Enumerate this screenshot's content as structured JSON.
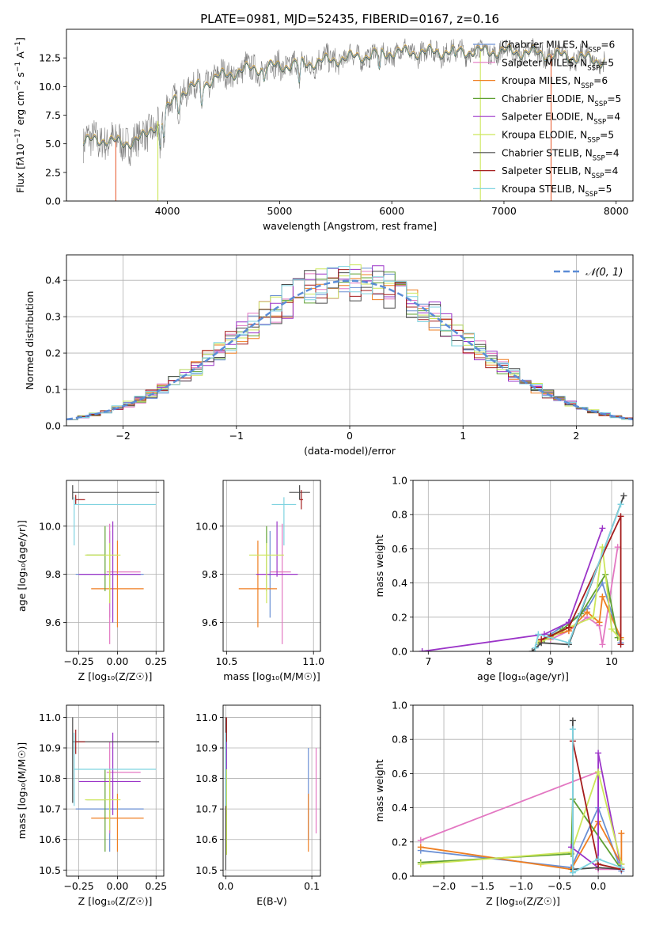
{
  "figure": {
    "title": "PLATE=0981, MJD=52435, FIBERID=0167, z=0.16"
  },
  "colors": {
    "Chabrier MILES": "#6a8fd4",
    "Salpeter MILES": "#e377c2",
    "Kroupa MILES": "#ef7f22",
    "Chabrier ELODIE": "#5fa032",
    "Salpeter ELODIE": "#9b34c8",
    "Kroupa ELODIE": "#cce65a",
    "Chabrier STELIB": "#4a4a4a",
    "Salpeter STELIB": "#a41d1d",
    "Kroupa STELIB": "#7fd3e0",
    "gaussian": "#5b8cd6",
    "data_gray": "#808080",
    "grid": "#b0b0b0"
  },
  "legend_entries": [
    {
      "name": "Chabrier MILES",
      "nssp": "6"
    },
    {
      "name": "Salpeter MILES",
      "nssp": "5"
    },
    {
      "name": "Kroupa MILES",
      "nssp": "6"
    },
    {
      "name": "Chabrier ELODIE",
      "nssp": "5"
    },
    {
      "name": "Salpeter ELODIE",
      "nssp": "4"
    },
    {
      "name": "Kroupa ELODIE",
      "nssp": "5"
    },
    {
      "name": "Chabrier STELIB",
      "nssp": "4"
    },
    {
      "name": "Salpeter STELIB",
      "nssp": "4"
    },
    {
      "name": "Kroupa STELIB",
      "nssp": "5"
    }
  ],
  "chart_data": [
    {
      "id": "spectrum",
      "type": "line",
      "title": "PLATE=0981, MJD=52435, FIBERID=0167, z=0.16",
      "xlabel": "wavelength [Angstrom, rest frame]",
      "ylabel_html": "Flux [f<tspan font-style='italic'>λ</tspan>10<tspan baseline-shift='super' font-size='9'>−17</tspan> erg cm<tspan baseline-shift='super' font-size='9'>−2</tspan> s<tspan baseline-shift='super' font-size='9'>−1</tspan> A<tspan baseline-shift='super' font-size='9'>−1</tspan>]",
      "xlim": [
        3100,
        8150
      ],
      "ylim": [
        0,
        15
      ],
      "xticks": [
        4000,
        5000,
        6000,
        7000,
        8000
      ],
      "yticks": [
        0.0,
        2.5,
        5.0,
        7.5,
        10.0,
        12.5
      ],
      "continuum": {
        "x": [
          3250,
          3450,
          3600,
          3800,
          4000,
          4100,
          4300,
          4500,
          4700,
          5000,
          5300,
          5600,
          6000,
          6300,
          6600,
          6900,
          7200,
          7500,
          7700,
          7900
        ],
        "y": [
          5.2,
          5.4,
          5.0,
          5.6,
          8.0,
          9.4,
          10.2,
          11.0,
          11.5,
          11.8,
          12.1,
          12.5,
          13.0,
          13.0,
          13.1,
          13.1,
          13.0,
          12.7,
          12.5,
          12.2
        ]
      },
      "legend_position": "top-right",
      "grid": false
    },
    {
      "id": "residuals",
      "type": "step-histogram",
      "xlabel": "(data-model)/error",
      "ylabel": "Normed distribution",
      "xlim": [
        -2.5,
        2.5
      ],
      "ylim": [
        0,
        0.47
      ],
      "xticks": [
        -2,
        -1,
        0,
        1,
        2
      ],
      "yticks": [
        0.0,
        0.1,
        0.2,
        0.3,
        0.4
      ],
      "gaussian_label": "𝒩(0, 1)",
      "legend_position": "top-right",
      "grid": true
    },
    {
      "id": "age-vs-z",
      "type": "errorbar",
      "xlabel": "Z [log₁₀(Z/Z☉)]",
      "ylabel": "age  [log₁₀(age/yr)]",
      "xlim": [
        -0.33,
        0.3
      ],
      "ylim": [
        9.48,
        10.19
      ],
      "xticks": [
        -0.25,
        0.0,
        0.25
      ],
      "yticks": [
        9.6,
        9.8,
        10.0
      ],
      "grid": true,
      "points": [
        {
          "model": "Chabrier MILES",
          "x": -0.05,
          "xerr": [
            0.22,
            0.22
          ],
          "y": 9.8,
          "yerr": [
            0.18,
            0.18
          ]
        },
        {
          "model": "Salpeter MILES",
          "x": -0.05,
          "xerr": [
            0.02,
            0.2
          ],
          "y": 9.81,
          "yerr": [
            0.3,
            0.2
          ]
        },
        {
          "model": "Kroupa MILES",
          "x": 0.0,
          "xerr": [
            0.17,
            0.17
          ],
          "y": 9.74,
          "yerr": [
            0.16,
            0.2
          ]
        },
        {
          "model": "Chabrier ELODIE",
          "x": -0.08,
          "xerr": [
            0.12,
            0.0
          ],
          "y": 9.88,
          "yerr": [
            0.15,
            0.12
          ]
        },
        {
          "model": "Salpeter ELODIE",
          "x": -0.03,
          "xerr": [
            0.22,
            0.18
          ],
          "y": 9.8,
          "yerr": [
            0.2,
            0.22
          ]
        },
        {
          "model": "Kroupa ELODIE",
          "x": -0.05,
          "xerr": [
            0.16,
            0.07
          ],
          "y": 9.88,
          "yerr": [
            0.2,
            0.05
          ]
        },
        {
          "model": "Chabrier STELIB",
          "x": -0.29,
          "xerr": [
            0.0,
            0.56
          ],
          "y": 10.14,
          "yerr": [
            0.03,
            0.03
          ]
        },
        {
          "model": "Salpeter STELIB",
          "x": -0.27,
          "xerr": [
            0.0,
            0.06
          ],
          "y": 10.11,
          "yerr": [
            0.02,
            0.02
          ]
        },
        {
          "model": "Kroupa STELIB",
          "x": -0.28,
          "xerr": [
            0.0,
            0.53
          ],
          "y": 10.09,
          "yerr": [
            0.17,
            0.03
          ]
        }
      ]
    },
    {
      "id": "age-vs-mass",
      "type": "errorbar",
      "xlabel": "mass [log₁₀(M/M☉)]",
      "ylabel": "",
      "xlim": [
        10.48,
        11.04
      ],
      "ylim": [
        9.48,
        10.19
      ],
      "xticks": [
        10.5,
        11.0
      ],
      "yticks": [
        9.6,
        9.8,
        10.0
      ],
      "grid": true,
      "points": [
        {
          "model": "Chabrier MILES",
          "x": 10.75,
          "xerr": [
            0.01,
            0.01
          ],
          "y": 9.8,
          "yerr": [
            0.18,
            0.18
          ]
        },
        {
          "model": "Salpeter MILES",
          "x": 10.82,
          "xerr": [
            0.07,
            0.05
          ],
          "y": 9.81,
          "yerr": [
            0.3,
            0.2
          ]
        },
        {
          "model": "Kroupa MILES",
          "x": 10.68,
          "xerr": [
            0.11,
            0.11
          ],
          "y": 9.74,
          "yerr": [
            0.16,
            0.2
          ]
        },
        {
          "model": "Chabrier ELODIE",
          "x": 10.73,
          "xerr": [
            0.0,
            0.0
          ],
          "y": 9.88,
          "yerr": [
            0.15,
            0.12
          ]
        },
        {
          "model": "Salpeter ELODIE",
          "x": 10.79,
          "xerr": [
            0.12,
            0.12
          ],
          "y": 9.8,
          "yerr": [
            0.01,
            0.22
          ]
        },
        {
          "model": "Kroupa ELODIE",
          "x": 10.73,
          "xerr": [
            0.1,
            0.1
          ],
          "y": 9.88,
          "yerr": [
            0.2,
            0.05
          ]
        },
        {
          "model": "Chabrier STELIB",
          "x": 10.92,
          "xerr": [
            0.06,
            0.06
          ],
          "y": 10.14,
          "yerr": [
            0.03,
            0.03
          ]
        },
        {
          "model": "Salpeter STELIB",
          "x": 10.93,
          "xerr": [
            0.01,
            0.01
          ],
          "y": 10.11,
          "yerr": [
            0.04,
            0.04
          ]
        },
        {
          "model": "Kroupa STELIB",
          "x": 10.83,
          "xerr": [
            0.07,
            0.07
          ],
          "y": 10.09,
          "yerr": [
            0.17,
            0.03
          ]
        }
      ]
    },
    {
      "id": "mass-vs-z",
      "type": "errorbar",
      "xlabel": "Z [log₁₀(Z/Z☉)]",
      "ylabel": "mass [log₁₀(M/M☉)]",
      "xlim": [
        -0.33,
        0.3
      ],
      "ylim": [
        10.48,
        11.04
      ],
      "xticks": [
        -0.25,
        0.0,
        0.25
      ],
      "yticks": [
        10.5,
        10.6,
        10.7,
        10.8,
        10.9,
        11.0
      ],
      "grid": true,
      "points": [
        {
          "model": "Chabrier MILES",
          "x": -0.05,
          "xerr": [
            0.22,
            0.22
          ],
          "y": 10.7,
          "yerr": [
            0.14,
            0.12
          ]
        },
        {
          "model": "Salpeter MILES",
          "x": -0.05,
          "xerr": [
            0.02,
            0.2
          ],
          "y": 10.82,
          "yerr": [
            0.2,
            0.1
          ]
        },
        {
          "model": "Kroupa MILES",
          "x": 0.0,
          "xerr": [
            0.17,
            0.17
          ],
          "y": 10.67,
          "yerr": [
            0.11,
            0.08
          ]
        },
        {
          "model": "Chabrier ELODIE",
          "x": -0.08,
          "xerr": [
            0.12,
            0.0
          ],
          "y": 10.73,
          "yerr": [
            0.17,
            0.1
          ]
        },
        {
          "model": "Salpeter ELODIE",
          "x": -0.03,
          "xerr": [
            0.22,
            0.18
          ],
          "y": 10.79,
          "yerr": [
            0.11,
            0.16
          ]
        },
        {
          "model": "Kroupa ELODIE",
          "x": -0.05,
          "xerr": [
            0.16,
            0.07
          ],
          "y": 10.73,
          "yerr": [
            0.1,
            0.1
          ]
        },
        {
          "model": "Chabrier STELIB",
          "x": -0.29,
          "xerr": [
            0.0,
            0.56
          ],
          "y": 10.92,
          "yerr": [
            0.2,
            0.08
          ]
        },
        {
          "model": "Salpeter STELIB",
          "x": -0.27,
          "xerr": [
            0.0,
            0.06
          ],
          "y": 10.92,
          "yerr": [
            0.04,
            0.04
          ]
        },
        {
          "model": "Kroupa STELIB",
          "x": -0.28,
          "xerr": [
            0.0,
            0.53
          ],
          "y": 10.83,
          "yerr": [
            0.12,
            0.12
          ]
        }
      ]
    },
    {
      "id": "mass-vs-ebv",
      "type": "errorbar",
      "xlabel": "E(B-V)",
      "ylabel": "",
      "xlim": [
        -0.003,
        0.11
      ],
      "ylim": [
        10.48,
        11.04
      ],
      "xticks": [
        0.0,
        0.1
      ],
      "yticks": [
        10.5,
        10.6,
        10.7,
        10.8,
        10.9,
        11.0
      ],
      "grid": true,
      "points": [
        {
          "model": "Chabrier MILES",
          "x": 0.096,
          "xerr": [
            0,
            0
          ],
          "y": 10.75,
          "yerr": [
            0.15,
            0.15
          ]
        },
        {
          "model": "Salpeter MILES",
          "x": 0.105,
          "xerr": [
            0,
            0
          ],
          "y": 10.78,
          "yerr": [
            0.16,
            0.12
          ]
        },
        {
          "model": "Kroupa MILES",
          "x": 0.096,
          "xerr": [
            0,
            0
          ],
          "y": 10.67,
          "yerr": [
            0.11,
            0.08
          ]
        },
        {
          "model": "Chabrier ELODIE",
          "x": 0.001,
          "xerr": [
            0,
            0
          ],
          "y": 10.73,
          "yerr": [
            0.18,
            0.1
          ]
        },
        {
          "model": "Salpeter ELODIE",
          "x": 0.001,
          "xerr": [
            0,
            0
          ],
          "y": 10.79,
          "yerr": [
            0.11,
            0.16
          ]
        },
        {
          "model": "Kroupa ELODIE",
          "x": 0.001,
          "xerr": [
            0,
            0
          ],
          "y": 10.73,
          "yerr": [
            0.18,
            0.1
          ]
        },
        {
          "model": "Chabrier STELIB",
          "x": 0.0,
          "xerr": [
            0,
            0
          ],
          "y": 10.95,
          "yerr": [
            0.45,
            0.05
          ]
        },
        {
          "model": "Salpeter STELIB",
          "x": 0.001,
          "xerr": [
            0,
            0
          ],
          "y": 10.96,
          "yerr": [
            0.04,
            0.04
          ]
        },
        {
          "model": "Kroupa STELIB",
          "x": 0.0,
          "xerr": [
            0,
            0
          ],
          "y": 10.83,
          "yerr": [
            0.12,
            0.12
          ]
        }
      ]
    },
    {
      "id": "weight-vs-age",
      "type": "line",
      "xlabel": "age  [log₁₀(age/yr)]",
      "ylabel": "mass weight",
      "xlim": [
        6.75,
        10.35
      ],
      "ylim": [
        0,
        1.0
      ],
      "xticks": [
        7,
        8,
        9,
        10
      ],
      "yticks": [
        0.0,
        0.2,
        0.4,
        0.6,
        0.8,
        1.0
      ],
      "grid": true,
      "series": [
        {
          "name": "Chabrier MILES",
          "x": [
            8.8,
            9.0,
            9.3,
            9.6,
            9.85,
            10.15
          ],
          "y": [
            0.04,
            0.1,
            0.17,
            0.25,
            0.4,
            0.05
          ]
        },
        {
          "name": "Salpeter MILES",
          "x": [
            9.0,
            9.3,
            9.6,
            9.8,
            9.85,
            10.1
          ],
          "y": [
            0.07,
            0.12,
            0.2,
            0.15,
            0.04,
            0.61
          ]
        },
        {
          "name": "Kroupa MILES",
          "x": [
            8.85,
            9.0,
            9.3,
            9.6,
            9.8,
            9.85,
            10.15
          ],
          "y": [
            0.06,
            0.09,
            0.12,
            0.23,
            0.17,
            0.32,
            0.08
          ]
        },
        {
          "name": "Chabrier ELODIE",
          "x": [
            8.9,
            9.2,
            9.5,
            9.9,
            10.1
          ],
          "y": [
            0.07,
            0.13,
            0.22,
            0.45,
            0.08
          ]
        },
        {
          "name": "Salpeter ELODIE",
          "x": [
            6.9,
            8.9,
            9.3,
            9.85
          ],
          "y": [
            0.0,
            0.1,
            0.17,
            0.72
          ]
        },
        {
          "name": "Kroupa ELODIE",
          "x": [
            8.8,
            9.0,
            9.3,
            9.7,
            9.85,
            10.0,
            10.15
          ],
          "y": [
            0.05,
            0.08,
            0.14,
            0.2,
            0.61,
            0.13,
            0.07
          ]
        },
        {
          "name": "Chabrier STELIB",
          "x": [
            8.7,
            8.85,
            9.3,
            10.2
          ],
          "y": [
            0.0,
            0.05,
            0.04,
            0.91
          ]
        },
        {
          "name": "Salpeter STELIB",
          "x": [
            8.85,
            9.0,
            9.3,
            10.15,
            10.15
          ],
          "y": [
            0.07,
            0.09,
            0.14,
            0.79,
            0.04
          ]
        },
        {
          "name": "Kroupa STELIB",
          "x": [
            8.75,
            8.8,
            9.3,
            10.15
          ],
          "y": [
            0.02,
            0.1,
            0.05,
            0.86
          ]
        }
      ]
    },
    {
      "id": "weight-vs-z",
      "type": "line",
      "xlabel": "Z [log₁₀(Z/Z☉)]",
      "ylabel": "mass weight",
      "xlim": [
        -2.4,
        0.45
      ],
      "ylim": [
        0,
        1.0
      ],
      "xticks": [
        -2.0,
        -1.5,
        -1.0,
        -0.5,
        0.0
      ],
      "yticks": [
        0.0,
        0.2,
        0.4,
        0.6,
        0.8,
        1.0
      ],
      "grid": true,
      "series": [
        {
          "name": "Chabrier MILES",
          "x": [
            -2.3,
            -0.35,
            0.0,
            0.3
          ],
          "y": [
            0.15,
            0.05,
            0.4,
            0.03
          ]
        },
        {
          "name": "Salpeter MILES",
          "x": [
            -2.3,
            0.0,
            0.0,
            0.3
          ],
          "y": [
            0.21,
            0.61,
            0.04,
            0.04
          ]
        },
        {
          "name": "Kroupa MILES",
          "x": [
            -2.3,
            -0.35,
            0.0,
            0.3,
            0.3
          ],
          "y": [
            0.17,
            0.04,
            0.32,
            0.07,
            0.25
          ]
        },
        {
          "name": "Chabrier ELODIE",
          "x": [
            -2.3,
            -0.35,
            -0.33,
            0.3
          ],
          "y": [
            0.08,
            0.13,
            0.45,
            0.04
          ]
        },
        {
          "name": "Salpeter ELODIE",
          "x": [
            -0.35,
            0.0,
            0.0,
            0.3
          ],
          "y": [
            0.17,
            0.05,
            0.72,
            0.04
          ]
        },
        {
          "name": "Kroupa ELODIE",
          "x": [
            -2.3,
            -0.35,
            0.0,
            0.3
          ],
          "y": [
            0.07,
            0.14,
            0.61,
            0.07
          ]
        },
        {
          "name": "Chabrier STELIB",
          "x": [
            -0.33,
            -0.33,
            0.0,
            0.3
          ],
          "y": [
            0.91,
            0.04,
            0.05,
            0.04
          ]
        },
        {
          "name": "Salpeter STELIB",
          "x": [
            -0.33,
            0.0,
            0.3
          ],
          "y": [
            0.79,
            0.07,
            0.04
          ]
        },
        {
          "name": "Kroupa STELIB",
          "x": [
            -0.33,
            -0.33,
            0.0,
            0.3
          ],
          "y": [
            0.86,
            0.02,
            0.1,
            0.05
          ]
        }
      ]
    }
  ]
}
